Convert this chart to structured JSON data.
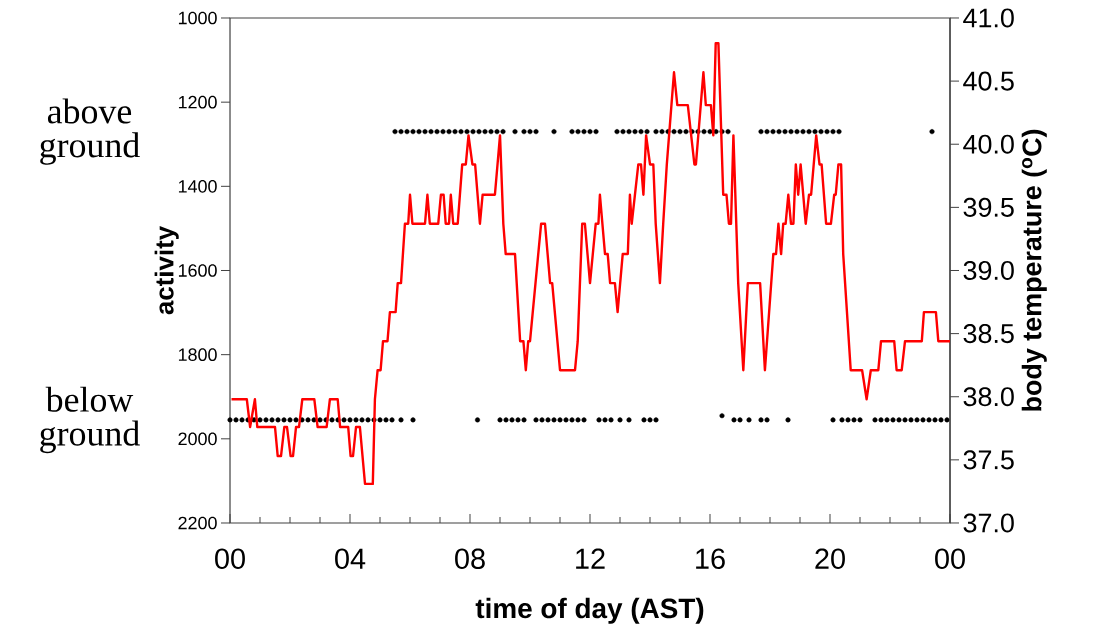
{
  "chart_data": {
    "type": "line",
    "xlabel": "time of day (AST)",
    "ylabel": "activity",
    "y2label": "body temperature ($^{o}$C)",
    "xlim": [
      0,
      24
    ],
    "xticks": [
      {
        "value": 0,
        "label": "00"
      },
      {
        "value": 1,
        "label": null
      },
      {
        "value": 2,
        "label": null
      },
      {
        "value": 3,
        "label": null
      },
      {
        "value": 4,
        "label": "04"
      },
      {
        "value": 5,
        "label": null
      },
      {
        "value": 6,
        "label": null
      },
      {
        "value": 7,
        "label": null
      },
      {
        "value": 8,
        "label": "08"
      },
      {
        "value": 9,
        "label": null
      },
      {
        "value": 10,
        "label": null
      },
      {
        "value": 11,
        "label": null
      },
      {
        "value": 12,
        "label": "12"
      },
      {
        "value": 13,
        "label": null
      },
      {
        "value": 14,
        "label": null
      },
      {
        "value": 15,
        "label": null
      },
      {
        "value": 16,
        "label": "16"
      },
      {
        "value": 17,
        "label": null
      },
      {
        "value": 18,
        "label": null
      },
      {
        "value": 19,
        "label": null
      },
      {
        "value": 20,
        "label": "20"
      },
      {
        "value": 21,
        "label": null
      },
      {
        "value": 22,
        "label": null
      },
      {
        "value": 23,
        "label": null
      },
      {
        "value": 24,
        "label": "00"
      }
    ],
    "ylim": [
      2200,
      1000
    ],
    "yticks": [
      1000,
      1200,
      1400,
      1600,
      1800,
      2000,
      2200
    ],
    "y2lim": [
      37,
      41
    ],
    "y2ticks": [
      {
        "value": 37,
        "label": "37.0"
      },
      {
        "value": 37.5,
        "label": "37.5"
      },
      {
        "value": 38,
        "label": "38.0"
      },
      {
        "value": 38.5,
        "label": "38.5"
      },
      {
        "value": 39,
        "label": "39.0"
      },
      {
        "value": 39.5,
        "label": "39.5"
      },
      {
        "value": 40,
        "label": "40.0"
      },
      {
        "value": 40.5,
        "label": "40.5"
      },
      {
        "value": 41,
        "label": "41.0"
      }
    ],
    "annotations": [
      "above ground",
      "below ground"
    ],
    "series": [
      {
        "type": "scatter",
        "color": "#000000",
        "marker": "circle",
        "x": [
          5.5,
          5.7,
          5.9,
          6.1,
          6.3,
          6.5,
          6.7,
          6.9,
          7.1,
          7.3,
          7.5,
          7.7,
          7.9,
          8.1,
          8.3,
          8.5,
          8.7,
          8.9,
          9.1,
          9.5,
          9.8,
          10.0,
          10.2,
          10.8,
          11.4,
          11.6,
          11.8,
          12.0,
          12.2,
          12.9,
          13.1,
          13.3,
          13.5,
          13.7,
          13.9,
          14.2,
          14.4,
          14.6,
          14.8,
          15.0,
          15.2,
          15.4,
          15.6,
          15.8,
          16.0,
          16.2,
          16.4,
          16.6,
          17.7,
          17.9,
          18.1,
          18.3,
          18.5,
          18.7,
          18.9,
          19.1,
          19.3,
          19.5,
          19.7,
          19.9,
          20.1,
          20.3,
          23.4
        ],
        "values": [
          1270,
          1270,
          1270,
          1270,
          1270,
          1270,
          1270,
          1270,
          1270,
          1270,
          1270,
          1270,
          1270,
          1270,
          1270,
          1270,
          1270,
          1270,
          1270,
          1270,
          1270,
          1270,
          1270,
          1270,
          1270,
          1270,
          1270,
          1270,
          1270,
          1270,
          1270,
          1270,
          1270,
          1270,
          1270,
          1270,
          1270,
          1270,
          1270,
          1270,
          1270,
          1270,
          1270,
          1270,
          1270,
          1270,
          1270,
          1270,
          1270,
          1270,
          1270,
          1270,
          1270,
          1270,
          1270,
          1270,
          1270,
          1270,
          1270,
          1270,
          1270,
          1270,
          1270
        ]
      },
      {
        "type": "scatter",
        "color": "#000000",
        "marker": "circle",
        "x": [
          0.0,
          0.2,
          0.4,
          0.6,
          0.8,
          1.0,
          1.2,
          1.4,
          1.6,
          1.8,
          2.0,
          2.2,
          2.4,
          2.6,
          2.8,
          3.0,
          3.2,
          3.4,
          3.6,
          3.8,
          4.0,
          4.2,
          4.4,
          4.6,
          4.8,
          5.0,
          5.2,
          5.4,
          5.7,
          6.1,
          8.25,
          9.0,
          9.2,
          9.4,
          9.6,
          9.8,
          10.2,
          10.4,
          10.6,
          10.8,
          11.0,
          11.2,
          11.4,
          11.6,
          11.8,
          12.3,
          12.5,
          12.7,
          13.0,
          13.3,
          13.8,
          14.0,
          14.2,
          16.4,
          16.8,
          17.0,
          17.3,
          17.7,
          17.9,
          18.6,
          20.1,
          20.4,
          20.6,
          20.8,
          21.0,
          21.5,
          21.7,
          21.9,
          22.1,
          22.3,
          22.5,
          22.7,
          22.9,
          23.1,
          23.3,
          23.5,
          23.7,
          23.9
        ],
        "values": [
          1955,
          1955,
          1955,
          1955,
          1955,
          1955,
          1955,
          1955,
          1955,
          1955,
          1955,
          1955,
          1955,
          1955,
          1955,
          1955,
          1955,
          1955,
          1955,
          1955,
          1955,
          1955,
          1955,
          1955,
          1955,
          1955,
          1955,
          1955,
          1955,
          1955,
          1955,
          1955,
          1955,
          1955,
          1955,
          1955,
          1955,
          1955,
          1955,
          1955,
          1955,
          1955,
          1955,
          1955,
          1955,
          1955,
          1955,
          1955,
          1955,
          1955,
          1955,
          1955,
          1955,
          1945,
          1955,
          1955,
          1955,
          1955,
          1955,
          1955,
          1955,
          1955,
          1955,
          1955,
          1955,
          1955,
          1955,
          1955,
          1955,
          1955,
          1955,
          1955,
          1955,
          1955,
          1955,
          1955,
          1955,
          1955
        ]
      },
      {
        "axis": "y2",
        "color": "#ff0000",
        "x": [
          0.05,
          0.56,
          0.67,
          0.83,
          0.91,
          1.5,
          1.59,
          1.7,
          1.81,
          1.9,
          2.02,
          2.1,
          2.2,
          2.3,
          2.41,
          2.81,
          2.92,
          3.22,
          3.33,
          3.59,
          3.67,
          3.94,
          4.02,
          4.1,
          4.2,
          4.33,
          4.5,
          4.76,
          4.83,
          4.92,
          5.02,
          5.1,
          5.25,
          5.33,
          5.52,
          5.59,
          5.7,
          5.83,
          5.94,
          6.0,
          6.08,
          6.5,
          6.58,
          6.66,
          6.94,
          7.03,
          7.12,
          7.19,
          7.3,
          7.36,
          7.44,
          7.59,
          7.74,
          7.86,
          7.95,
          8.08,
          8.17,
          8.33,
          8.42,
          8.83,
          9.0,
          9.11,
          9.19,
          9.5,
          9.67,
          9.78,
          9.86,
          9.94,
          10.0,
          10.37,
          10.5,
          10.67,
          10.74,
          11.0,
          11.5,
          11.59,
          11.74,
          11.83,
          12.0,
          12.19,
          12.28,
          12.33,
          12.5,
          12.59,
          12.67,
          12.83,
          12.92,
          13.09,
          13.26,
          13.33,
          13.39,
          13.61,
          13.7,
          13.78,
          13.87,
          14.0,
          14.11,
          14.19,
          14.33,
          14.44,
          14.56,
          14.8,
          14.91,
          15.26,
          15.48,
          15.53,
          15.78,
          15.86,
          16.03,
          16.11,
          16.19,
          16.28,
          16.44,
          16.55,
          16.63,
          16.7,
          16.78,
          16.94,
          17.11,
          17.26,
          17.67,
          17.83,
          18.11,
          18.2,
          18.28,
          18.37,
          18.44,
          18.52,
          18.61,
          18.7,
          18.78,
          18.86,
          18.94,
          19.02,
          19.19,
          19.3,
          19.37,
          19.54,
          19.65,
          19.72,
          19.87,
          20.03,
          20.14,
          20.19,
          20.28,
          20.37,
          20.44,
          20.69,
          21.07,
          21.22,
          21.36,
          21.61,
          21.7,
          22.14,
          22.22,
          22.39,
          22.5,
          23.06,
          23.13,
          23.53,
          23.61,
          24.0
        ],
        "values": [
          37.98,
          37.98,
          37.76,
          37.98,
          37.76,
          37.76,
          37.53,
          37.53,
          37.76,
          37.76,
          37.53,
          37.53,
          37.76,
          37.76,
          37.98,
          37.98,
          37.76,
          37.76,
          37.98,
          37.98,
          37.76,
          37.76,
          37.53,
          37.53,
          37.76,
          37.76,
          37.31,
          37.31,
          37.98,
          38.21,
          38.21,
          38.44,
          38.44,
          38.67,
          38.67,
          38.9,
          38.9,
          39.37,
          39.37,
          39.6,
          39.37,
          39.37,
          39.6,
          39.37,
          39.37,
          39.6,
          39.6,
          39.37,
          39.37,
          39.6,
          39.37,
          39.37,
          39.84,
          39.84,
          40.07,
          39.84,
          39.84,
          39.37,
          39.6,
          39.6,
          40.07,
          39.37,
          39.13,
          39.13,
          38.44,
          38.44,
          38.21,
          38.44,
          38.44,
          39.37,
          39.37,
          38.9,
          38.9,
          38.21,
          38.21,
          38.44,
          39.37,
          39.37,
          38.9,
          39.37,
          39.37,
          39.6,
          39.13,
          39.13,
          38.9,
          38.9,
          38.67,
          39.13,
          39.13,
          39.6,
          39.37,
          39.84,
          39.84,
          39.6,
          40.07,
          39.84,
          39.84,
          39.37,
          38.9,
          39.37,
          39.84,
          40.57,
          40.31,
          40.31,
          39.84,
          39.84,
          40.57,
          40.31,
          40.31,
          40.07,
          40.8,
          40.8,
          39.6,
          39.6,
          39.37,
          39.37,
          40.07,
          38.9,
          38.21,
          38.9,
          38.9,
          38.21,
          39.13,
          39.13,
          39.37,
          39.13,
          39.37,
          39.37,
          39.6,
          39.37,
          39.37,
          39.84,
          39.6,
          39.84,
          39.37,
          39.6,
          39.6,
          40.07,
          39.84,
          39.84,
          39.37,
          39.37,
          39.6,
          39.6,
          39.84,
          39.84,
          39.13,
          38.21,
          38.21,
          37.98,
          38.21,
          38.21,
          38.44,
          38.44,
          38.21,
          38.21,
          38.44,
          38.44,
          38.67,
          38.67,
          38.44,
          38.44
        ]
      }
    ]
  }
}
